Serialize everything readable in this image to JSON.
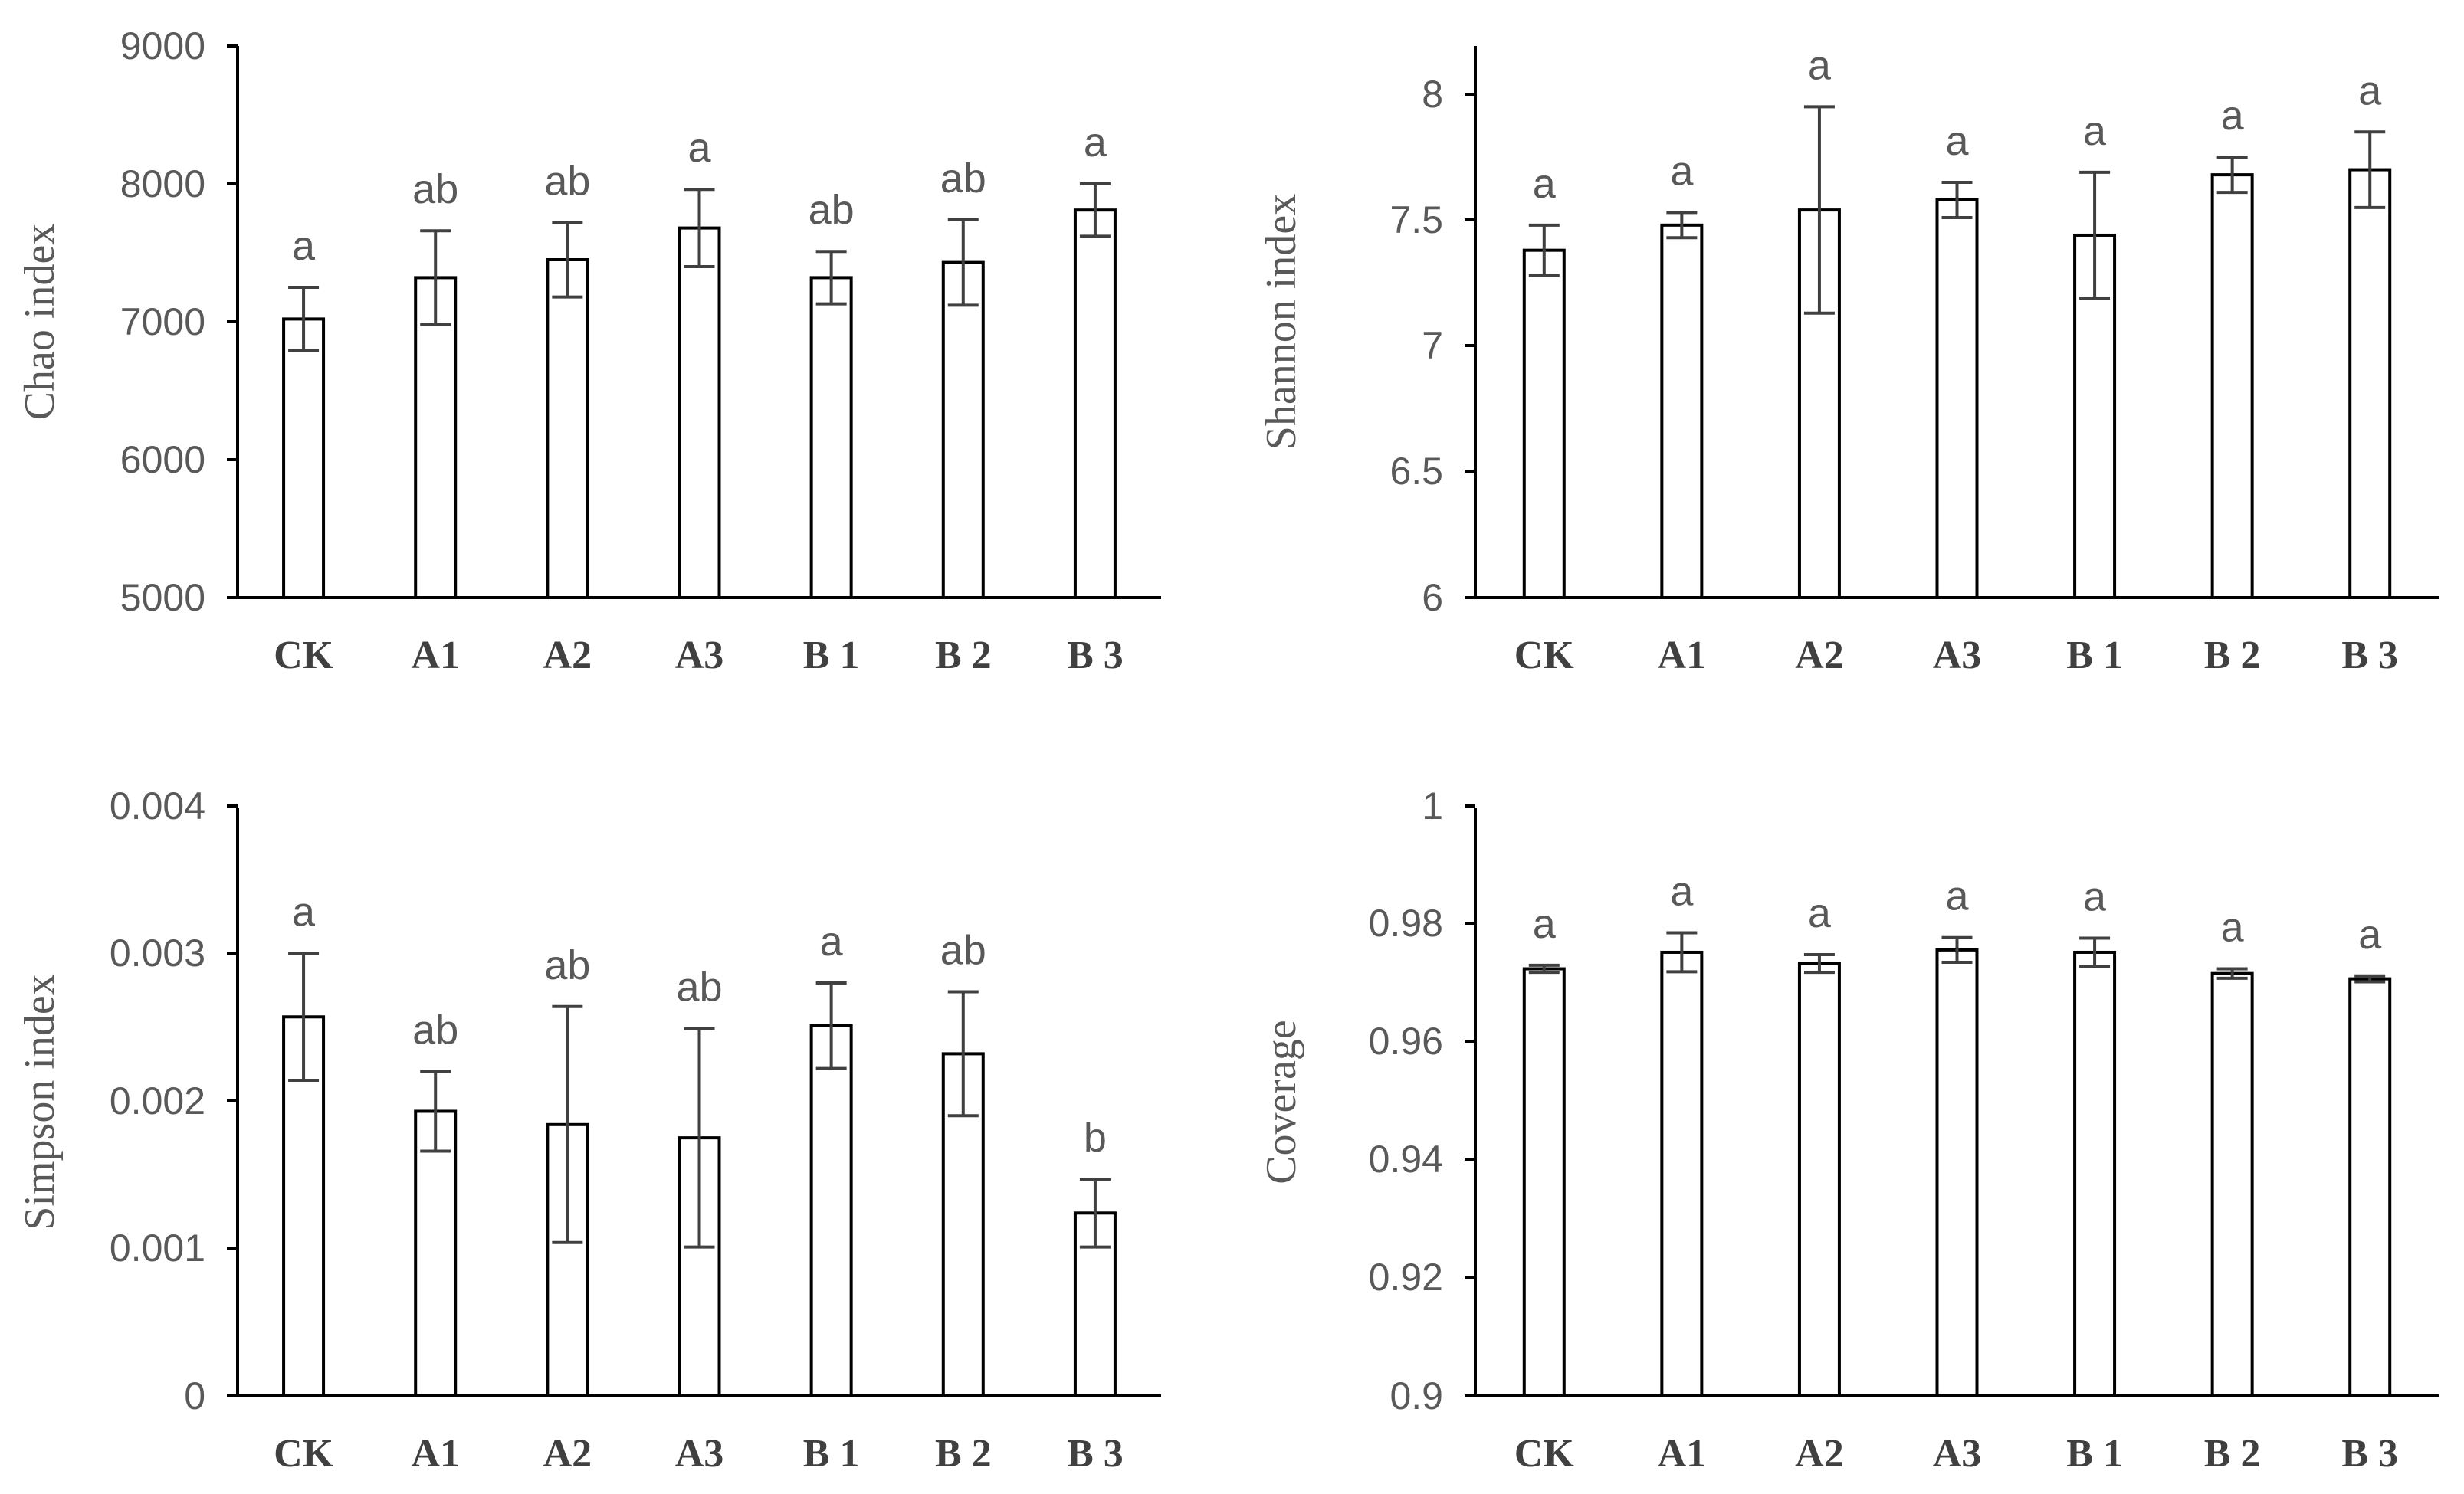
{
  "chart_data": [
    {
      "type": "bar",
      "ylabel": "Chao index",
      "ylim": [
        5000,
        9000
      ],
      "yticks": [
        "5000",
        "6000",
        "7000",
        "8000",
        "9000"
      ],
      "categories": [
        "CK",
        "A1",
        "A2",
        "A3",
        "B 1",
        "B 2",
        "B 3"
      ],
      "values": [
        7020,
        7320,
        7450,
        7680,
        7320,
        7430,
        7810
      ],
      "errors": [
        230,
        340,
        270,
        280,
        190,
        310,
        190
      ],
      "letters": [
        "a",
        "ab",
        "ab",
        "a",
        "ab",
        "ab",
        "a"
      ]
    },
    {
      "type": "bar",
      "ylabel": "Shannon index",
      "ylim": [
        6,
        8.2
      ],
      "yticks": [
        "6",
        "6.5",
        "7",
        "7.5",
        "8"
      ],
      "categories": [
        "CK",
        "A1",
        "A2",
        "A3",
        "B 1",
        "B 2",
        "B 3"
      ],
      "values": [
        7.38,
        7.48,
        7.54,
        7.58,
        7.44,
        7.68,
        7.7
      ],
      "errors": [
        0.1,
        0.05,
        0.41,
        0.07,
        0.25,
        0.07,
        0.15
      ],
      "letters": [
        "a",
        "a",
        "a",
        "a",
        "a",
        "a",
        "a"
      ]
    },
    {
      "type": "bar",
      "ylabel": "Simpson index",
      "ylim": [
        0,
        0.004
      ],
      "yticks": [
        "0",
        "0.001",
        "0.002",
        "0.003",
        "0.004"
      ],
      "categories": [
        "CK",
        "A1",
        "A2",
        "A3",
        "B 1",
        "B 2",
        "B 3"
      ],
      "values": [
        0.00257,
        0.00193,
        0.00184,
        0.00175,
        0.00251,
        0.00232,
        0.00124
      ],
      "errors": [
        0.00043,
        0.00027,
        0.0008,
        0.00074,
        0.00029,
        0.00042,
        0.00023
      ],
      "letters": [
        "a",
        "ab",
        "ab",
        "ab",
        "a",
        "ab",
        "b"
      ]
    },
    {
      "type": "bar",
      "ylabel": "Coverage",
      "ylim": [
        0.9,
        1.0
      ],
      "yticks": [
        "0.9",
        "0.92",
        "0.94",
        "0.96",
        "0.98",
        "1"
      ],
      "categories": [
        "CK",
        "A1",
        "A2",
        "A3",
        "B 1",
        "B 2",
        "B 3"
      ],
      "values": [
        0.9724,
        0.9752,
        0.9733,
        0.9756,
        0.9752,
        0.9716,
        0.9707
      ],
      "errors": [
        0.0006,
        0.0033,
        0.0015,
        0.0021,
        0.0024,
        0.0008,
        0.0005
      ],
      "letters": [
        "a",
        "a",
        "a",
        "a",
        "a",
        "a",
        "a"
      ]
    }
  ]
}
